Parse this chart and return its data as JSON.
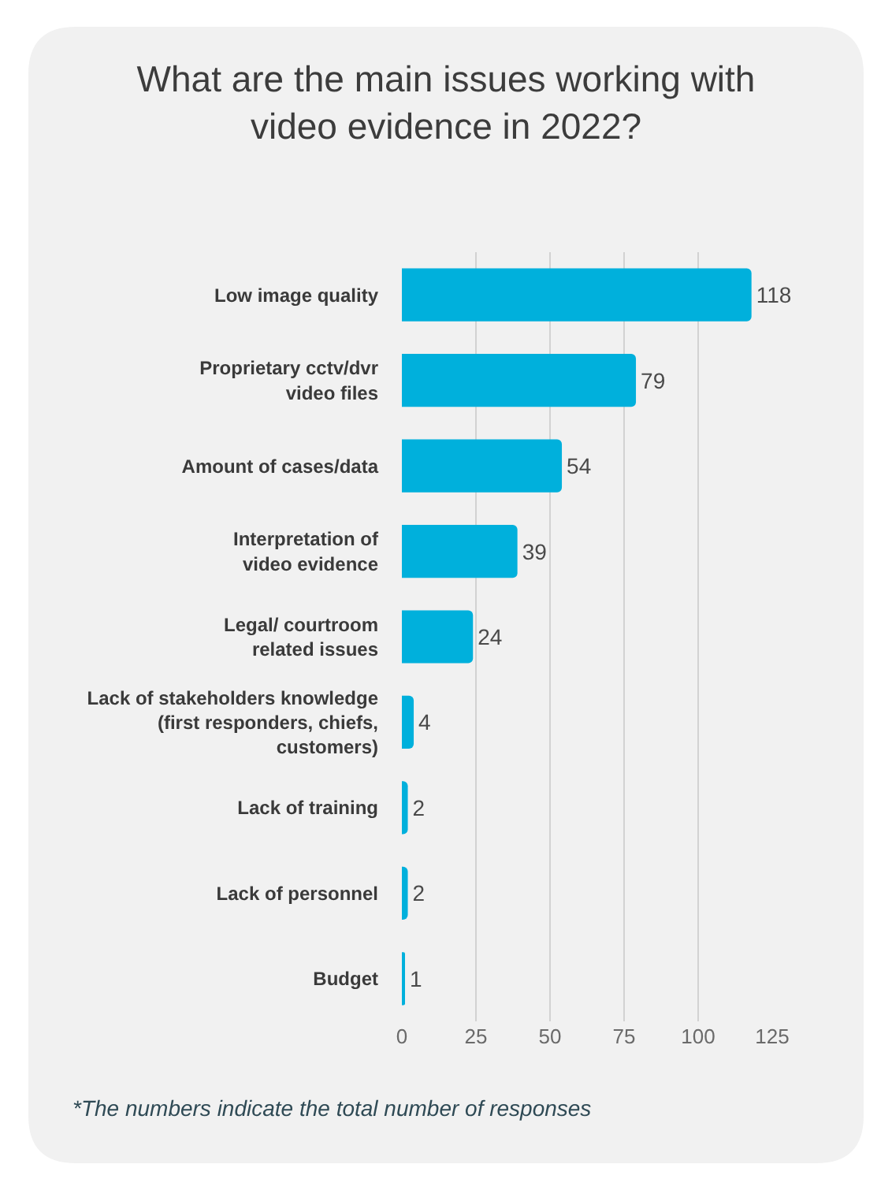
{
  "chart_data": {
    "type": "bar",
    "orientation": "horizontal",
    "title": "What are the main issues working with\nvideo evidence in 2022?",
    "categories": [
      "Low image quality",
      "Proprietary cctv/dvr\nvideo files",
      "Amount of cases/data",
      "Interpretation of\nvideo evidence",
      "Legal/ courtroom\nrelated issues",
      "Lack of stakeholders knowledge\n(first responders, chiefs,\ncustomers)",
      "Lack of training",
      "Lack of personnel",
      "Budget"
    ],
    "values": [
      118,
      79,
      54,
      39,
      24,
      4,
      2,
      2,
      1
    ],
    "color": "#00b0dc",
    "xlim": [
      0,
      125
    ],
    "xticks": [
      0,
      25,
      50,
      75,
      100,
      125
    ],
    "grid": "x",
    "data_labels": true,
    "annotations": [
      "*The numbers indicate the total number of responses"
    ]
  }
}
